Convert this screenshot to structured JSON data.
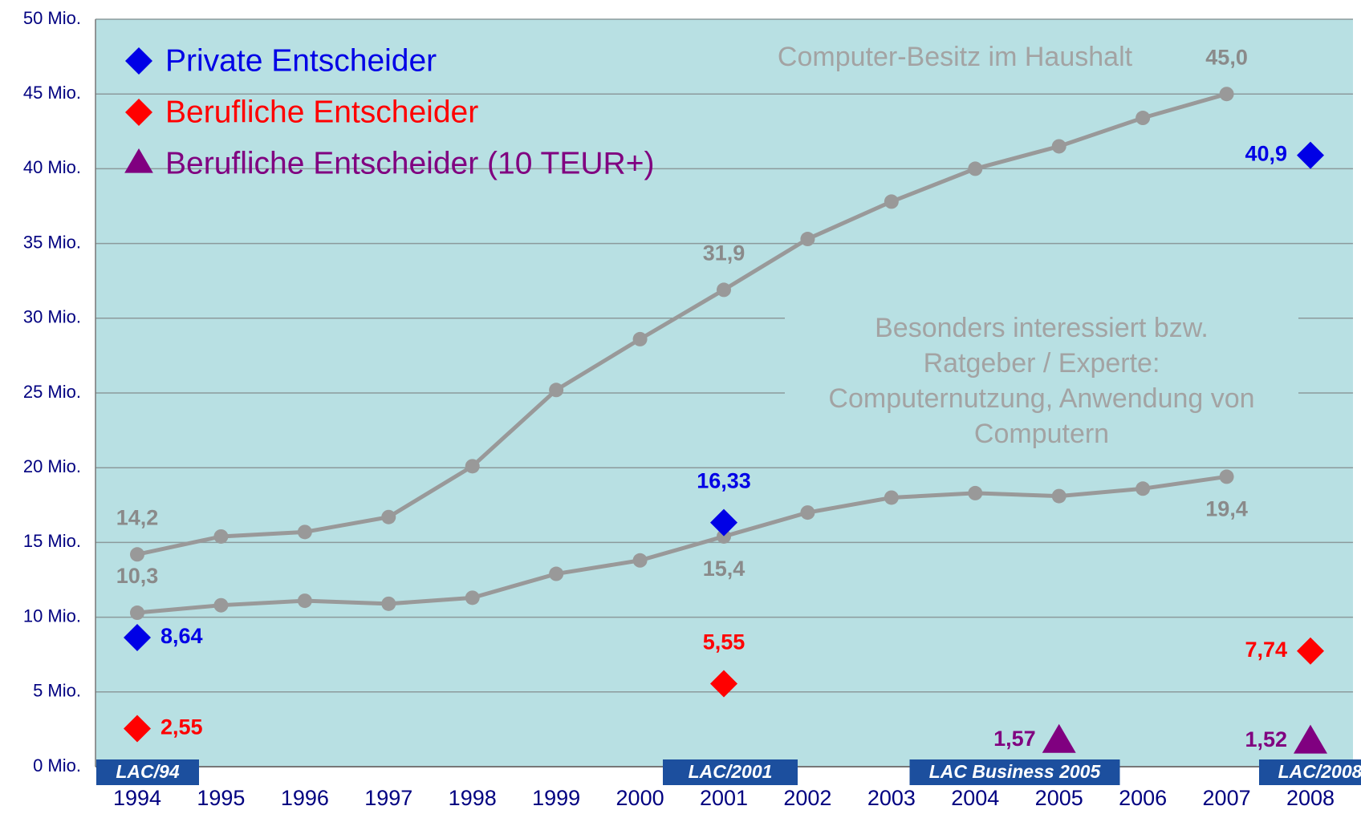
{
  "chart_data": {
    "type": "line",
    "categories": [
      "1994",
      "1995",
      "1996",
      "1997",
      "1998",
      "1999",
      "2000",
      "2001",
      "2002",
      "2003",
      "2004",
      "2005",
      "2006",
      "2007",
      "2008"
    ],
    "ylim": [
      0,
      50
    ],
    "yticks": [
      {
        "value": 0,
        "label": "0 Mio."
      },
      {
        "value": 5,
        "label": "5 Mio."
      },
      {
        "value": 10,
        "label": "10 Mio."
      },
      {
        "value": 15,
        "label": "15 Mio."
      },
      {
        "value": 20,
        "label": "20 Mio."
      },
      {
        "value": 25,
        "label": "25 Mio."
      },
      {
        "value": 30,
        "label": "30 Mio."
      },
      {
        "value": 35,
        "label": "35 Mio."
      },
      {
        "value": 40,
        "label": "40 Mio."
      },
      {
        "value": 45,
        "label": "45 Mio."
      },
      {
        "value": 50,
        "label": "50 Mio."
      }
    ],
    "grid": true,
    "background": "#b8e0e3",
    "annotations": [
      {
        "lines": [
          "Computer-Besitz im Haushalt"
        ]
      },
      {
        "lines": [
          "Besonders interessiert bzw.",
          "Ratgeber / Experte:",
          "Computernutzung, Anwendung von",
          "Computern"
        ]
      }
    ],
    "badges": [
      "LAC/94",
      "LAC/2001",
      "LAC Business 2005",
      "LAC/2008"
    ],
    "series": [
      {
        "color": "#999999",
        "values": [
          14.2,
          15.4,
          15.7,
          16.7,
          20.1,
          25.2,
          28.6,
          31.9,
          35.3,
          37.8,
          40.0,
          41.5,
          43.4,
          45.0,
          null
        ],
        "value_labels": [
          "14,2",
          null,
          null,
          null,
          null,
          null,
          null,
          "31,9",
          null,
          null,
          null,
          null,
          null,
          "45,0",
          null
        ]
      },
      {
        "color": "#999999",
        "values": [
          10.3,
          10.8,
          11.1,
          10.9,
          11.3,
          12.9,
          13.8,
          15.4,
          17.0,
          18.0,
          18.3,
          18.1,
          18.6,
          19.4,
          null
        ],
        "value_labels": [
          "10,3",
          null,
          null,
          null,
          null,
          null,
          null,
          "15,4",
          null,
          null,
          null,
          null,
          null,
          "19,4",
          null
        ]
      },
      {
        "name": "Private Entscheider",
        "color": "#0000e6",
        "marker": "diamond",
        "values": [
          8.64,
          null,
          null,
          null,
          null,
          null,
          null,
          16.33,
          null,
          null,
          null,
          null,
          null,
          null,
          40.9
        ],
        "value_labels": [
          "8,64",
          null,
          null,
          null,
          null,
          null,
          null,
          "16,33",
          null,
          null,
          null,
          null,
          null,
          null,
          "40,9"
        ]
      },
      {
        "name": "Berufliche Entscheider",
        "color": "#ff0000",
        "marker": "diamond",
        "values": [
          2.55,
          null,
          null,
          null,
          null,
          null,
          null,
          5.55,
          null,
          null,
          null,
          null,
          null,
          null,
          7.74
        ],
        "value_labels": [
          "2,55",
          null,
          null,
          null,
          null,
          null,
          null,
          "5,55",
          null,
          null,
          null,
          null,
          null,
          null,
          "7,74"
        ]
      },
      {
        "name": "Berufliche Entscheider (10 TEUR+)",
        "color": "#800080",
        "marker": "triangle",
        "values": [
          null,
          null,
          null,
          null,
          null,
          null,
          null,
          null,
          null,
          null,
          null,
          1.57,
          null,
          null,
          1.52
        ],
        "value_labels": [
          null,
          null,
          null,
          null,
          null,
          null,
          null,
          null,
          null,
          null,
          null,
          "1,57",
          null,
          null,
          "1,52"
        ]
      }
    ]
  }
}
